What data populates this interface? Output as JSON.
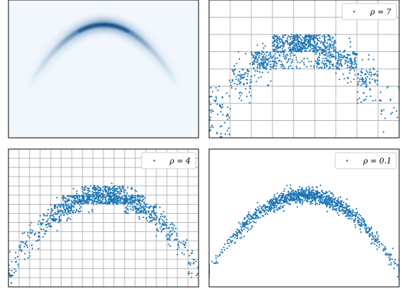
{
  "point_color": "#1f77b4",
  "density_colors": [
    "#f2f7fd",
    "#1c5d99",
    "#08306b"
  ],
  "chart_data": [
    {
      "type": "heatmap",
      "title": "",
      "xlabel": "",
      "ylabel": "",
      "curve": "parabola",
      "xlim": [
        -1,
        1
      ],
      "ylim": [
        -1.15,
        0.25
      ],
      "grid": false,
      "legend": null
    },
    {
      "type": "scatter",
      "series": [
        {
          "name": "ρ = 7",
          "count": 1200
        }
      ],
      "legend_label": "ρ = 7",
      "legend_position": "top-right",
      "grid": true,
      "grid_cells": [
        9,
        8
      ],
      "xlim": [
        -1,
        1
      ],
      "ylim": [
        -1.2,
        0.6
      ],
      "noise_std": 0.05
    },
    {
      "type": "scatter",
      "series": [
        {
          "name": "ρ = 4",
          "count": 1200
        }
      ],
      "legend_label": "ρ = 4",
      "legend_position": "top-right",
      "grid": true,
      "grid_cells": [
        18,
        15
      ],
      "xlim": [
        -1,
        1
      ],
      "ylim": [
        -1.2,
        0.6
      ],
      "noise_std": 0.05
    },
    {
      "type": "scatter",
      "series": [
        {
          "name": "ρ = 0.1",
          "count": 1200
        }
      ],
      "legend_label": "ρ = 0.1",
      "legend_position": "top-right",
      "grid": false,
      "xlim": [
        -1,
        1
      ],
      "ylim": [
        -1.2,
        0.6
      ],
      "noise_std": 0.05
    }
  ]
}
